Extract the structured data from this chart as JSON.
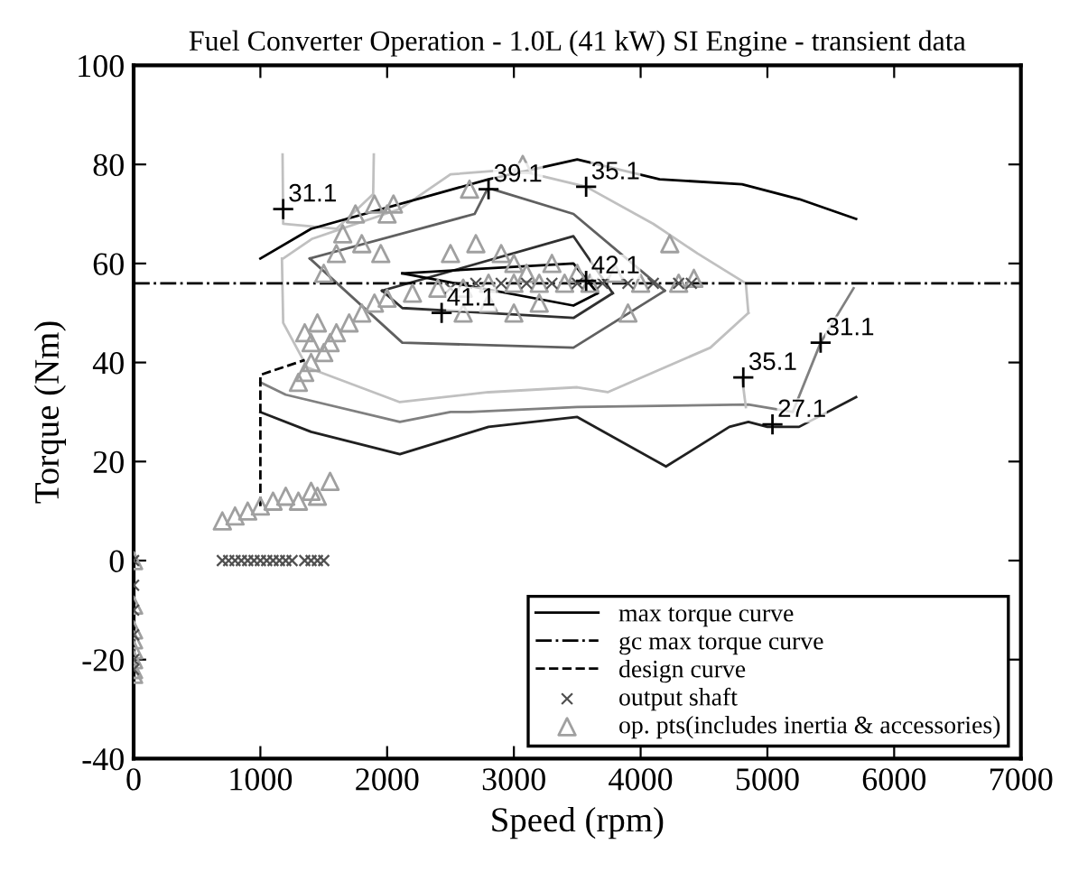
{
  "chart_data": {
    "type": "line",
    "title": "Fuel Converter Operation - 1.0L (41 kW) SI Engine - transient data",
    "xlabel": "Speed (rpm)",
    "ylabel": "Torque (Nm)",
    "xlim": [
      0,
      7000
    ],
    "xticks": [
      0,
      1000,
      2000,
      3000,
      4000,
      5000,
      6000,
      7000
    ],
    "ylim": [
      -40,
      100
    ],
    "yticks": [
      -40,
      -20,
      0,
      20,
      40,
      60,
      80,
      100
    ],
    "grid": false,
    "legend": "bottom right",
    "series": [
      {
        "color": "#202020",
        "line_style": "solid",
        "marker": "none",
        "x": [
          1000,
          1400,
          2100,
          2800,
          3500,
          4200,
          4700,
          4850,
          5000,
          5250,
          5700
        ],
        "values": [
          30,
          26,
          21.5,
          27,
          29,
          19,
          27,
          28,
          27,
          27,
          33
        ]
      },
      {
        "color": "#808080",
        "line_style": "solid",
        "marker": "none",
        "x": [
          1000,
          1200,
          2100,
          2500,
          2650,
          3500,
          4850,
          5200,
          5420,
          5680
        ],
        "values": [
          36,
          33.5,
          28,
          30,
          30,
          31,
          31.5,
          30,
          44,
          55
        ]
      },
      {
        "color": "#c0c0c0",
        "line_style": "solid",
        "marker": "none",
        "x": [
          1175,
          1180,
          1600,
          1890,
          1895
        ],
        "values": [
          82,
          68,
          67,
          74,
          82
        ]
      },
      {
        "color": "#c0c0c0",
        "line_style": "solid",
        "marker": "none",
        "x": [
          1180,
          1410,
          2100,
          2500,
          3000,
          3570,
          4100,
          4450,
          4830,
          4850
        ],
        "values": [
          61,
          65,
          71,
          78,
          79,
          75.5,
          68,
          62,
          56,
          50
        ]
      },
      {
        "color": "#c0c0c0",
        "line_style": "solid",
        "marker": "none",
        "x": [
          1170,
          1180,
          1370,
          2100,
          2800,
          3500,
          3740,
          4550,
          4850
        ],
        "values": [
          61,
          48,
          39,
          32,
          34,
          35,
          34,
          43,
          50
        ]
      },
      {
        "color": "#c0c0c0",
        "line_style": "solid",
        "x": [
          4800,
          4830
        ],
        "values": [
          37,
          31
        ]
      },
      {
        "color": "#606060",
        "line_style": "solid",
        "x": [
          1390,
          2690,
          2790,
          2830,
          3470,
          4190
        ],
        "values": [
          61,
          70,
          75,
          75,
          70,
          54.5
        ]
      },
      {
        "color": "#606060",
        "line_style": "solid",
        "x": [
          1390,
          2120,
          3470,
          4190
        ],
        "values": [
          61,
          44,
          43,
          54.5
        ]
      },
      {
        "color": "#303030",
        "line_style": "solid",
        "marker": "none",
        "x": [
          1960,
          3470,
          3780
        ],
        "values": [
          54.5,
          65.5,
          54
        ]
      },
      {
        "color": "#303030",
        "line_style": "solid",
        "marker": "none",
        "x": [
          1960,
          2120,
          3470,
          3780
        ],
        "values": [
          54.5,
          51,
          49,
          54
        ]
      },
      {
        "color": "#000000",
        "line_style": "solid",
        "marker": "none",
        "x": [
          2120,
          3470,
          3660
        ],
        "values": [
          58,
          60,
          54
        ]
      },
      {
        "color": "#000000",
        "line_style": "solid",
        "marker": "none",
        "x": [
          2120,
          3470,
          3660
        ],
        "values": [
          58,
          51.5,
          54
        ]
      },
      {
        "name": "max torque curve",
        "color": "#000000",
        "line_style": "solid",
        "marker": "none",
        "x": [
          1000,
          1400,
          2800,
          3500,
          4150,
          4800,
          5250,
          5700
        ],
        "values": [
          61,
          67,
          77,
          81,
          77,
          76,
          73,
          69
        ]
      },
      {
        "name": "gc max torque curve",
        "color": "#000000",
        "line_style": "dashdot",
        "marker": "none",
        "x": [
          0,
          7000
        ],
        "values": [
          56,
          56
        ]
      },
      {
        "name": "design curve",
        "color": "#000000",
        "line_style": "dashed",
        "marker": "none",
        "x": [
          1000,
          1000,
          1350
        ],
        "values": [
          11,
          37.5,
          40.5
        ]
      },
      {
        "name": "output shaft",
        "type": "scatter",
        "color": "#505050",
        "marker": "cross",
        "x": [
          700,
          750,
          800,
          850,
          900,
          950,
          1000,
          1050,
          1100,
          1150,
          1200,
          1250,
          1350,
          1400,
          1450,
          1500,
          0,
          0,
          0,
          0,
          0,
          0,
          2500,
          2700,
          2900,
          3100,
          3300,
          3500,
          3700,
          3900,
          4100,
          4300,
          4400
        ],
        "values": [
          0,
          0,
          0,
          0,
          0,
          0,
          0,
          0,
          0,
          0,
          0,
          0,
          0,
          0,
          0,
          0,
          0,
          -5,
          -10,
          -15,
          -20,
          -22,
          55,
          56,
          56,
          56,
          56,
          56,
          56,
          56,
          56,
          56,
          56
        ]
      },
      {
        "name": "op. pts(includes inertia & accessories)",
        "type": "scatter",
        "color": "#a0a0a0",
        "marker": "triangle",
        "x": [
          0,
          0,
          0,
          0,
          0,
          0,
          0,
          0,
          700,
          800,
          900,
          1000,
          1100,
          1200,
          1300,
          1400,
          1450,
          1550,
          1300,
          1350,
          1400,
          1500,
          1550,
          1600,
          1700,
          1800,
          1900,
          2000,
          2200,
          2400,
          2600,
          2800,
          3000,
          3200,
          3400,
          3600,
          1450,
          1500,
          1600,
          1650,
          1750,
          1800,
          1900,
          2000,
          2050,
          1350,
          1400,
          1950,
          2500,
          2700,
          2900,
          3000,
          3100,
          3300,
          3500,
          2800,
          3200,
          2650,
          3070,
          3800,
          4000,
          4300,
          3900,
          4230,
          4420,
          3000,
          2600
        ],
        "values": [
          0,
          -9,
          -14,
          -16,
          -18,
          -20,
          -22,
          -23,
          8,
          9,
          10,
          11,
          12,
          13,
          12,
          14,
          13,
          16,
          36,
          38,
          40,
          42,
          44,
          46,
          48,
          50,
          52,
          53,
          54,
          55,
          55,
          56,
          56,
          56,
          56,
          56,
          48,
          58,
          62,
          66,
          70,
          64,
          72,
          70,
          72,
          46,
          44,
          62,
          62,
          64,
          62,
          60,
          58,
          60,
          58,
          52,
          52,
          75,
          80,
          58,
          56,
          56,
          50,
          64,
          57,
          50,
          50
        ]
      }
    ],
    "annotations": [
      {
        "text": "31.1",
        "x": 1180,
        "y": 71
      },
      {
        "text": "39.1",
        "x": 2800,
        "y": 75
      },
      {
        "text": "35.1",
        "x": 3570,
        "y": 75.5
      },
      {
        "text": "41.1",
        "x": 2430,
        "y": 50
      },
      {
        "text": "42.1",
        "x": 3570,
        "y": 56.5
      },
      {
        "text": "35.1",
        "x": 4810,
        "y": 37
      },
      {
        "text": "31.1",
        "x": 5420,
        "y": 44
      },
      {
        "text": "27.1",
        "x": 5040,
        "y": 27.5
      }
    ]
  }
}
